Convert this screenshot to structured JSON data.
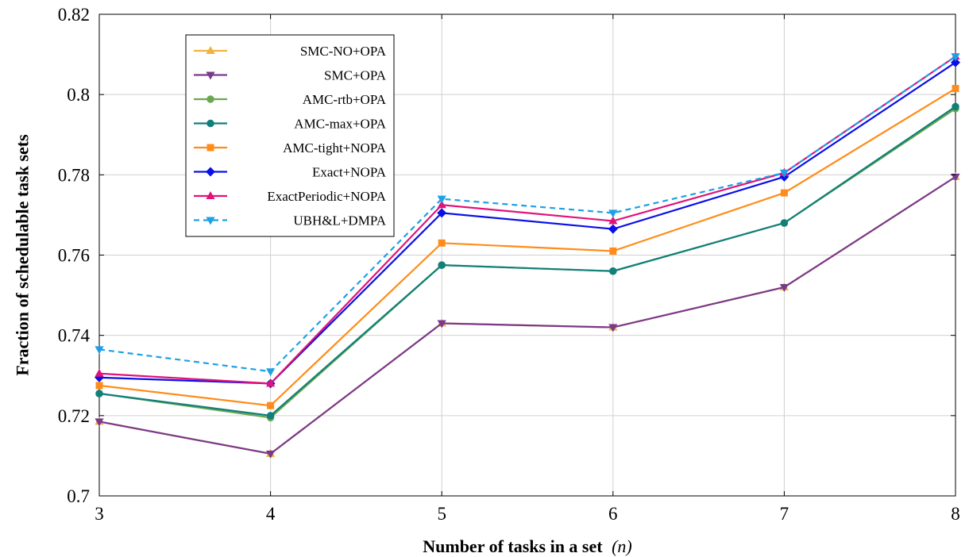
{
  "chart_data": {
    "type": "line",
    "title": "",
    "xlabel": "Number of tasks in a set",
    "xlabel_symbol": "(n)",
    "ylabel": "Fraction of schedulable task sets",
    "x": [
      3,
      4,
      5,
      6,
      7,
      8
    ],
    "xlim": [
      3,
      8
    ],
    "ylim": [
      0.7,
      0.82
    ],
    "x_ticks": [
      "3",
      "4",
      "5",
      "6",
      "7",
      "8"
    ],
    "y_ticks": [
      "0.7",
      "0.72",
      "0.74",
      "0.76",
      "0.78",
      "0.8",
      "0.82"
    ],
    "grid": true,
    "legend_position": "top-left",
    "series": [
      {
        "name": "SMC-NO+OPA",
        "color": "#f2b33d",
        "marker": "triangle-up",
        "dashed": false,
        "values": [
          0.7185,
          0.7105,
          0.743,
          0.742,
          0.752,
          0.7795
        ]
      },
      {
        "name": "SMC+OPA",
        "color": "#7a3a8c",
        "marker": "triangle-down",
        "dashed": false,
        "values": [
          0.7185,
          0.7105,
          0.743,
          0.742,
          0.752,
          0.7795
        ]
      },
      {
        "name": "AMC-rtb+OPA",
        "color": "#6aa84f",
        "marker": "circle",
        "dashed": false,
        "values": [
          0.7255,
          0.7195,
          0.7575,
          0.756,
          0.768,
          0.7965
        ]
      },
      {
        "name": "AMC-max+OPA",
        "color": "#117f7a",
        "marker": "circle",
        "dashed": false,
        "values": [
          0.7255,
          0.72,
          0.7575,
          0.756,
          0.768,
          0.797
        ]
      },
      {
        "name": "AMC-tight+NOPA",
        "color": "#ff8c1a",
        "marker": "square",
        "dashed": false,
        "values": [
          0.7275,
          0.7225,
          0.763,
          0.761,
          0.7755,
          0.8015
        ]
      },
      {
        "name": "Exact+NOPA",
        "color": "#0a10e6",
        "marker": "diamond",
        "dashed": false,
        "values": [
          0.7295,
          0.728,
          0.7705,
          0.7665,
          0.7795,
          0.808
        ]
      },
      {
        "name": "ExactPeriodic+NOPA",
        "color": "#e0137a",
        "marker": "triangle-up",
        "dashed": false,
        "values": [
          0.7305,
          0.728,
          0.7725,
          0.7685,
          0.7805,
          0.8095
        ]
      },
      {
        "name": "UBH&L+DMPA",
        "color": "#1ea0e6",
        "marker": "triangle-down",
        "dashed": true,
        "values": [
          0.7365,
          0.731,
          0.774,
          0.7705,
          0.7805,
          0.8095
        ]
      }
    ]
  }
}
